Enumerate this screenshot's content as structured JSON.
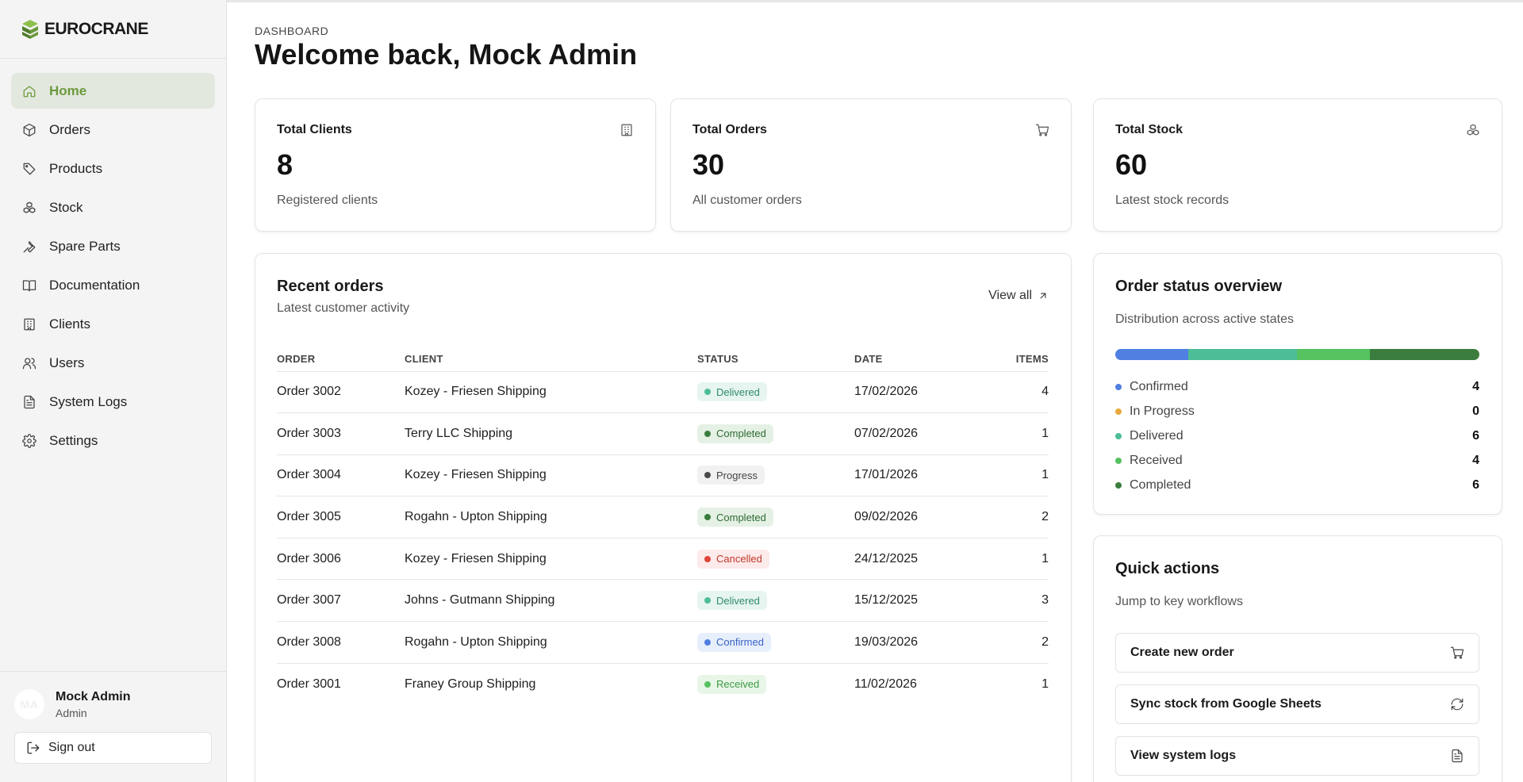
{
  "brand": {
    "name": "EUROCRANE",
    "logo_icon": "stacked-blocks-logo-icon",
    "accent": "#6b9a3c"
  },
  "sidebar": {
    "items": [
      {
        "label": "Home",
        "icon": "home-icon",
        "active": true
      },
      {
        "label": "Orders",
        "icon": "box-icon"
      },
      {
        "label": "Products",
        "icon": "tag-icon"
      },
      {
        "label": "Stock",
        "icon": "boxes-icon"
      },
      {
        "label": "Spare Parts",
        "icon": "wrench-icon"
      },
      {
        "label": "Documentation",
        "icon": "book-icon"
      },
      {
        "label": "Clients",
        "icon": "building-icon"
      },
      {
        "label": "Users",
        "icon": "users-icon"
      },
      {
        "label": "System Logs",
        "icon": "file-text-icon"
      },
      {
        "label": "Settings",
        "icon": "gear-icon"
      }
    ],
    "user": {
      "initials": "MA",
      "name": "Mock Admin",
      "role": "Admin"
    },
    "sign_out": "Sign out"
  },
  "header": {
    "eyebrow": "DASHBOARD",
    "title": "Welcome back, Mock Admin"
  },
  "stats": [
    {
      "title": "Total Clients",
      "value": "8",
      "sub": "Registered clients",
      "icon": "building-icon"
    },
    {
      "title": "Total Orders",
      "value": "30",
      "sub": "All customer orders",
      "icon": "cart-icon"
    },
    {
      "title": "Total Stock",
      "value": "60",
      "sub": "Latest stock records",
      "icon": "boxes-icon"
    }
  ],
  "recent_orders": {
    "title": "Recent orders",
    "subtitle": "Latest customer activity",
    "view_all": "View all",
    "columns": [
      "ORDER",
      "CLIENT",
      "STATUS",
      "DATE",
      "ITEMS"
    ],
    "rows": [
      {
        "order": "Order 3002",
        "client": "Kozey - Friesen Shipping",
        "status": "Delivered",
        "date": "17/02/2026",
        "items": "4"
      },
      {
        "order": "Order 3003",
        "client": "Terry LLC Shipping",
        "status": "Completed",
        "date": "07/02/2026",
        "items": "1"
      },
      {
        "order": "Order 3004",
        "client": "Kozey - Friesen Shipping",
        "status": "Progress",
        "date": "17/01/2026",
        "items": "1"
      },
      {
        "order": "Order 3005",
        "client": "Rogahn - Upton Shipping",
        "status": "Completed",
        "date": "09/02/2026",
        "items": "2"
      },
      {
        "order": "Order 3006",
        "client": "Kozey - Friesen Shipping",
        "status": "Cancelled",
        "date": "24/12/2025",
        "items": "1"
      },
      {
        "order": "Order 3007",
        "client": "Johns - Gutmann Shipping",
        "status": "Delivered",
        "date": "15/12/2025",
        "items": "3"
      },
      {
        "order": "Order 3008",
        "client": "Rogahn - Upton Shipping",
        "status": "Confirmed",
        "date": "19/03/2026",
        "items": "2"
      },
      {
        "order": "Order 3001",
        "client": "Franey Group Shipping",
        "status": "Received",
        "date": "11/02/2026",
        "items": "1"
      }
    ]
  },
  "status_styles": {
    "Delivered": {
      "bg": "#e6f5ef",
      "fg": "#2f8a6a",
      "dot": "#4dbd97"
    },
    "Completed": {
      "bg": "#e5f1e5",
      "fg": "#2e6b33",
      "dot": "#3a7d3e"
    },
    "Progress": {
      "bg": "#f1f1f1",
      "fg": "#444444",
      "dot": "#4a4a4a"
    },
    "Cancelled": {
      "bg": "#fdeaea",
      "fg": "#c0392b",
      "dot": "#e0443a"
    },
    "Confirmed": {
      "bg": "#e8effc",
      "fg": "#3764c4",
      "dot": "#4f7fe0"
    },
    "Received": {
      "bg": "#e8f6e8",
      "fg": "#3c9a44",
      "dot": "#55c25f"
    }
  },
  "status_overview": {
    "title": "Order status overview",
    "subtitle": "Distribution across active states",
    "segments": [
      {
        "label": "Confirmed",
        "value": 4,
        "color": "#4f7fe0"
      },
      {
        "label": "In Progress",
        "value": 0,
        "color": "#e8a93c"
      },
      {
        "label": "Delivered",
        "value": 6,
        "color": "#4dbd97"
      },
      {
        "label": "Received",
        "value": 4,
        "color": "#55c25f"
      },
      {
        "label": "Completed",
        "value": 6,
        "color": "#3a7d3e"
      }
    ]
  },
  "quick_actions": {
    "title": "Quick actions",
    "subtitle": "Jump to key workflows",
    "actions": [
      {
        "label": "Create new order",
        "icon": "cart-icon"
      },
      {
        "label": "Sync stock from Google Sheets",
        "icon": "refresh-icon"
      },
      {
        "label": "View system logs",
        "icon": "file-text-icon"
      }
    ]
  }
}
